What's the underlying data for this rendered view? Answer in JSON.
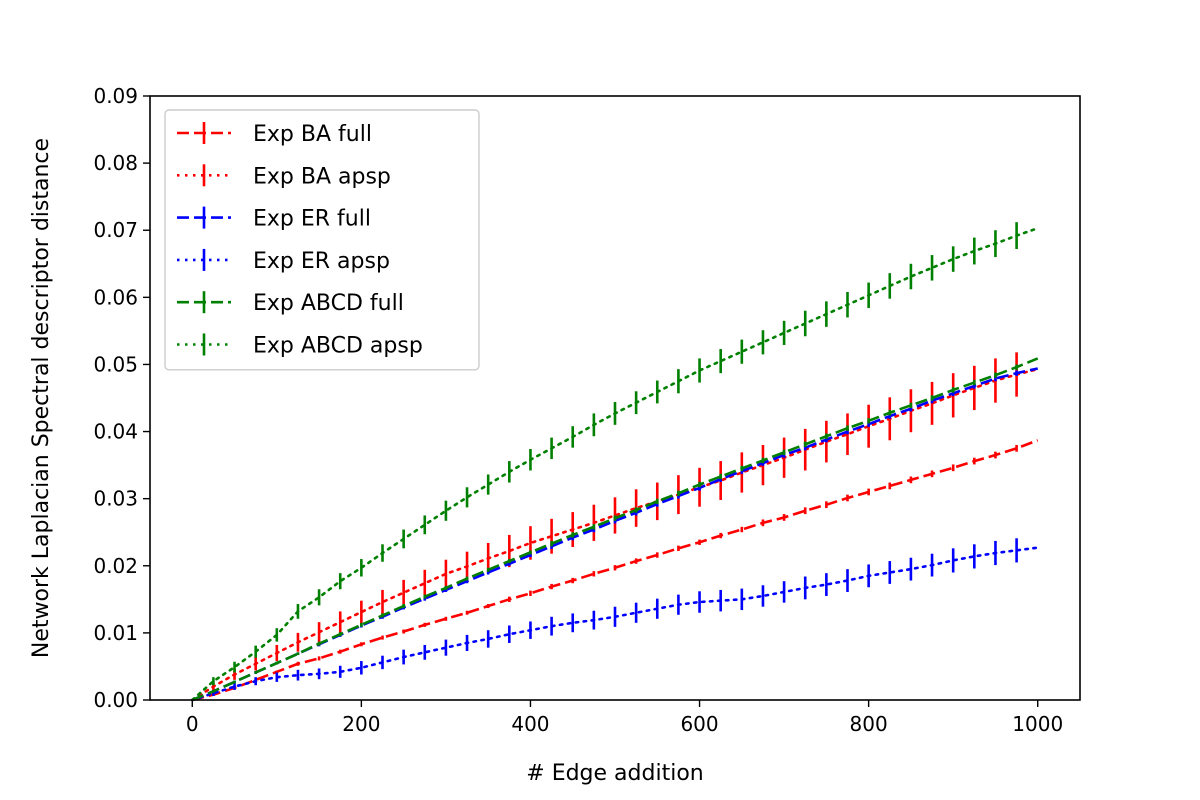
{
  "chart_data": {
    "type": "line",
    "title": "",
    "xlabel": "# Edge addition",
    "ylabel": "Network Laplacian Spectral descriptor distance",
    "xlim": [
      -50,
      1050
    ],
    "ylim": [
      0,
      0.09
    ],
    "xticks": [
      0,
      200,
      400,
      600,
      800,
      1000
    ],
    "yticks": [
      0.0,
      0.01,
      0.02,
      0.03,
      0.04,
      0.05,
      0.06,
      0.07,
      0.08,
      0.09
    ],
    "xtick_labels": [
      "0",
      "200",
      "400",
      "600",
      "800",
      "1000"
    ],
    "ytick_labels": [
      "0.00",
      "0.01",
      "0.02",
      "0.03",
      "0.04",
      "0.05",
      "0.06",
      "0.07",
      "0.08",
      "0.09"
    ],
    "grid": false,
    "legend_position": "top-left",
    "x": [
      0,
      25,
      50,
      75,
      100,
      125,
      150,
      175,
      200,
      225,
      250,
      275,
      300,
      325,
      350,
      375,
      400,
      425,
      450,
      475,
      500,
      525,
      550,
      575,
      600,
      625,
      650,
      675,
      700,
      725,
      750,
      775,
      800,
      825,
      850,
      875,
      900,
      925,
      950,
      975,
      1000
    ],
    "series": [
      {
        "name": "Exp BA full",
        "color": "#ff0000",
        "linestyle": "dashed",
        "values": [
          0.0,
          0.0008,
          0.0018,
          0.003,
          0.0042,
          0.0054,
          0.0062,
          0.0072,
          0.0083,
          0.0093,
          0.0102,
          0.0112,
          0.0121,
          0.013,
          0.014,
          0.015,
          0.0159,
          0.0169,
          0.0178,
          0.0188,
          0.0197,
          0.0207,
          0.0216,
          0.0226,
          0.0235,
          0.0245,
          0.0254,
          0.0264,
          0.0272,
          0.0282,
          0.0291,
          0.0301,
          0.031,
          0.0319,
          0.0328,
          0.0337,
          0.0346,
          0.0356,
          0.0365,
          0.0375,
          0.0387
        ],
        "errors": [
          0.0,
          0.0002,
          0.0002,
          0.0002,
          0.0002,
          0.0003,
          0.0003,
          0.0003,
          0.0003,
          0.0003,
          0.0003,
          0.0003,
          0.0003,
          0.0003,
          0.0003,
          0.0004,
          0.0004,
          0.0004,
          0.0004,
          0.0004,
          0.0004,
          0.0004,
          0.0004,
          0.0004,
          0.0004,
          0.0004,
          0.0004,
          0.0005,
          0.0005,
          0.0005,
          0.0005,
          0.0005,
          0.0005,
          0.0005,
          0.0005,
          0.0005,
          0.0005,
          0.0005,
          0.0005,
          0.0005,
          0.0
        ]
      },
      {
        "name": "Exp BA apsp",
        "color": "#ff0000",
        "linestyle": "dotted",
        "values": [
          0.0,
          0.002,
          0.0038,
          0.0054,
          0.007,
          0.0086,
          0.0101,
          0.0116,
          0.0131,
          0.0146,
          0.016,
          0.0174,
          0.0188,
          0.0199,
          0.0211,
          0.0222,
          0.0234,
          0.0244,
          0.0254,
          0.0264,
          0.0275,
          0.0286,
          0.0296,
          0.0306,
          0.0317,
          0.0327,
          0.0339,
          0.035,
          0.0361,
          0.0373,
          0.0385,
          0.0396,
          0.0408,
          0.0419,
          0.0431,
          0.0442,
          0.0454,
          0.0465,
          0.0476,
          0.0485,
          0.0493
        ],
        "errors": [
          0.0,
          0.0005,
          0.0008,
          0.001,
          0.0012,
          0.0014,
          0.0015,
          0.0016,
          0.0017,
          0.0018,
          0.0019,
          0.002,
          0.0021,
          0.0022,
          0.0023,
          0.0024,
          0.0025,
          0.0026,
          0.0026,
          0.0027,
          0.0027,
          0.0028,
          0.0028,
          0.0029,
          0.0029,
          0.0029,
          0.003,
          0.003,
          0.003,
          0.0031,
          0.0031,
          0.0031,
          0.0032,
          0.0032,
          0.0032,
          0.0032,
          0.0033,
          0.0033,
          0.0033,
          0.0033,
          0.0
        ]
      },
      {
        "name": "Exp ER full",
        "color": "#0000ff",
        "linestyle": "dashed",
        "values": [
          0.0,
          0.0013,
          0.0027,
          0.0041,
          0.0055,
          0.0069,
          0.0083,
          0.0097,
          0.0111,
          0.0124,
          0.0138,
          0.0151,
          0.0164,
          0.0177,
          0.019,
          0.0203,
          0.0216,
          0.0229,
          0.0242,
          0.0254,
          0.0267,
          0.0279,
          0.0292,
          0.0304,
          0.0316,
          0.0329,
          0.0341,
          0.0353,
          0.0365,
          0.0376,
          0.0388,
          0.04,
          0.0411,
          0.0423,
          0.0434,
          0.0446,
          0.0457,
          0.0468,
          0.0479,
          0.0487,
          0.0494
        ],
        "errors": [
          0.0,
          0.0002,
          0.0002,
          0.0002,
          0.0002,
          0.0002,
          0.0003,
          0.0003,
          0.0003,
          0.0003,
          0.0003,
          0.0003,
          0.0003,
          0.0003,
          0.0003,
          0.0003,
          0.0003,
          0.0004,
          0.0004,
          0.0004,
          0.0004,
          0.0004,
          0.0004,
          0.0004,
          0.0004,
          0.0004,
          0.0004,
          0.0004,
          0.0004,
          0.0004,
          0.0004,
          0.0004,
          0.0004,
          0.0004,
          0.0004,
          0.0004,
          0.0004,
          0.0004,
          0.0004,
          0.0004,
          0.0
        ]
      },
      {
        "name": "Exp ER apsp",
        "color": "#0000ff",
        "linestyle": "dotted",
        "values": [
          0.0,
          0.001,
          0.002,
          0.0028,
          0.0034,
          0.0037,
          0.0039,
          0.0042,
          0.0048,
          0.0056,
          0.0064,
          0.0071,
          0.0078,
          0.0085,
          0.0091,
          0.0098,
          0.0104,
          0.011,
          0.0115,
          0.0119,
          0.0124,
          0.013,
          0.0136,
          0.0142,
          0.0146,
          0.0148,
          0.015,
          0.0155,
          0.0161,
          0.0167,
          0.0172,
          0.0178,
          0.0185,
          0.019,
          0.0195,
          0.0201,
          0.0208,
          0.0214,
          0.0219,
          0.0223,
          0.0227
        ],
        "errors": [
          0.0,
          0.0004,
          0.0005,
          0.0006,
          0.0007,
          0.0008,
          0.0008,
          0.0009,
          0.001,
          0.001,
          0.0011,
          0.0011,
          0.0012,
          0.0012,
          0.0013,
          0.0013,
          0.0013,
          0.0014,
          0.0014,
          0.0014,
          0.0015,
          0.0015,
          0.0015,
          0.0015,
          0.0016,
          0.0016,
          0.0016,
          0.0016,
          0.0016,
          0.0017,
          0.0017,
          0.0017,
          0.0017,
          0.0017,
          0.0017,
          0.0017,
          0.0018,
          0.0018,
          0.0018,
          0.0018,
          0.0
        ]
      },
      {
        "name": "Exp ABCD full",
        "color": "#008000",
        "linestyle": "dashed",
        "values": [
          0.0,
          0.0013,
          0.0027,
          0.0041,
          0.0055,
          0.0069,
          0.0084,
          0.0098,
          0.0112,
          0.0126,
          0.014,
          0.0154,
          0.0167,
          0.0181,
          0.0194,
          0.0207,
          0.022,
          0.0233,
          0.0246,
          0.0258,
          0.0271,
          0.0283,
          0.0296,
          0.0308,
          0.0321,
          0.0333,
          0.0345,
          0.0357,
          0.0369,
          0.0381,
          0.0393,
          0.0405,
          0.0416,
          0.0428,
          0.0439,
          0.045,
          0.0462,
          0.0473,
          0.0484,
          0.0496,
          0.0509
        ],
        "errors": [
          0.0,
          0.0002,
          0.0002,
          0.0002,
          0.0002,
          0.0002,
          0.0003,
          0.0003,
          0.0003,
          0.0003,
          0.0003,
          0.0003,
          0.0003,
          0.0003,
          0.0003,
          0.0003,
          0.0003,
          0.0004,
          0.0004,
          0.0004,
          0.0004,
          0.0004,
          0.0004,
          0.0004,
          0.0004,
          0.0004,
          0.0004,
          0.0004,
          0.0004,
          0.0004,
          0.0004,
          0.0004,
          0.0004,
          0.0004,
          0.0004,
          0.0004,
          0.0004,
          0.0004,
          0.0004,
          0.0004,
          0.0
        ]
      },
      {
        "name": "Exp ABCD apsp",
        "color": "#008000",
        "linestyle": "dotted",
        "values": [
          0.0,
          0.0028,
          0.0049,
          0.0072,
          0.0097,
          0.0132,
          0.0153,
          0.0177,
          0.0197,
          0.0219,
          0.024,
          0.0261,
          0.0282,
          0.0302,
          0.0321,
          0.034,
          0.0358,
          0.0375,
          0.0392,
          0.041,
          0.0427,
          0.0443,
          0.0459,
          0.0475,
          0.0491,
          0.0505,
          0.0519,
          0.0533,
          0.0547,
          0.0561,
          0.0575,
          0.0589,
          0.0603,
          0.0617,
          0.0631,
          0.0644,
          0.0657,
          0.0669,
          0.068,
          0.0692,
          0.0703
        ],
        "errors": [
          0.0,
          0.0006,
          0.0008,
          0.0009,
          0.001,
          0.0011,
          0.0012,
          0.0012,
          0.0013,
          0.0013,
          0.0014,
          0.0014,
          0.0015,
          0.0015,
          0.0015,
          0.0016,
          0.0016,
          0.0016,
          0.0016,
          0.0017,
          0.0017,
          0.0017,
          0.0017,
          0.0018,
          0.0018,
          0.0018,
          0.0018,
          0.0018,
          0.0018,
          0.0019,
          0.0019,
          0.0019,
          0.0019,
          0.0019,
          0.0019,
          0.0019,
          0.0019,
          0.002,
          0.002,
          0.002,
          0.0
        ]
      }
    ]
  }
}
